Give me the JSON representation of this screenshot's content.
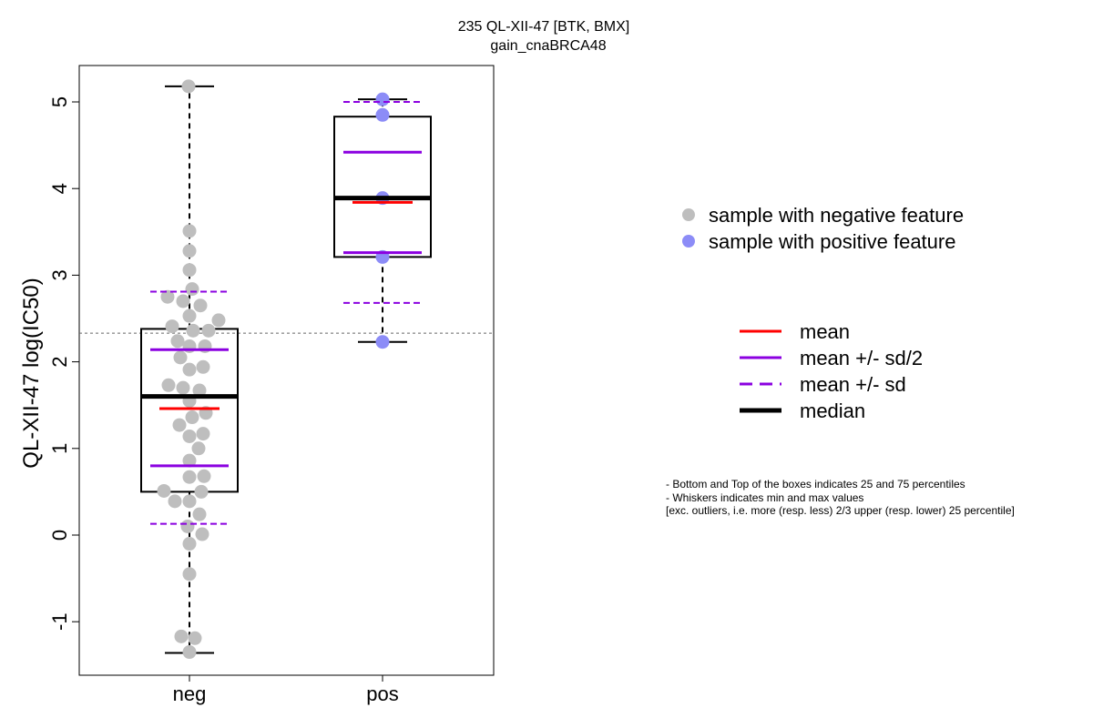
{
  "chart_data": {
    "type": "box",
    "title": "235 QL-XII-47 [BTK, BMX]",
    "subtitle": "gain_cnaBRCA48",
    "ylabel": "QL-XII-47 log(IC50)",
    "ylim": [
      -1.6,
      5.45
    ],
    "yticks": [
      -1,
      0,
      1,
      2,
      3,
      4,
      5
    ],
    "reference_line": 2.33,
    "categories": [
      "neg",
      "pos"
    ],
    "groups": [
      {
        "name": "neg",
        "color": "#bebebe",
        "box": {
          "q1": 0.5,
          "median": 1.6,
          "q3": 2.38,
          "whisker_low": -1.36,
          "whisker_high": 5.18
        },
        "mean": 1.46,
        "mean_plus_half_sd": 2.14,
        "mean_minus_half_sd": 0.8,
        "mean_plus_sd": 2.81,
        "mean_minus_sd": 0.13,
        "points": [
          {
            "x": -0.01,
            "y": 5.18
          },
          {
            "x": 0.0,
            "y": 3.51
          },
          {
            "x": 0.0,
            "y": 3.28
          },
          {
            "x": 0.0,
            "y": 3.06
          },
          {
            "x": -0.24,
            "y": 2.75
          },
          {
            "x": -0.07,
            "y": 2.7
          },
          {
            "x": 0.12,
            "y": 2.65
          },
          {
            "x": 0.03,
            "y": 2.84
          },
          {
            "x": 0.0,
            "y": 2.53
          },
          {
            "x": 0.32,
            "y": 2.48
          },
          {
            "x": -0.19,
            "y": 2.41
          },
          {
            "x": 0.04,
            "y": 2.36
          },
          {
            "x": 0.21,
            "y": 2.36
          },
          {
            "x": -0.13,
            "y": 2.24
          },
          {
            "x": 0.0,
            "y": 2.18
          },
          {
            "x": 0.17,
            "y": 2.18
          },
          {
            "x": -0.1,
            "y": 2.05
          },
          {
            "x": 0.0,
            "y": 1.91
          },
          {
            "x": 0.15,
            "y": 1.94
          },
          {
            "x": -0.23,
            "y": 1.73
          },
          {
            "x": -0.07,
            "y": 1.7
          },
          {
            "x": 0.11,
            "y": 1.67
          },
          {
            "x": 0.0,
            "y": 1.55
          },
          {
            "x": 0.18,
            "y": 1.41
          },
          {
            "x": 0.03,
            "y": 1.36
          },
          {
            "x": -0.11,
            "y": 1.27
          },
          {
            "x": 0.15,
            "y": 1.17
          },
          {
            "x": 0.0,
            "y": 1.14
          },
          {
            "x": 0.1,
            "y": 1.0
          },
          {
            "x": 0.0,
            "y": 0.86
          },
          {
            "x": 0.0,
            "y": 0.67
          },
          {
            "x": 0.16,
            "y": 0.68
          },
          {
            "x": -0.28,
            "y": 0.51
          },
          {
            "x": 0.13,
            "y": 0.5
          },
          {
            "x": -0.16,
            "y": 0.39
          },
          {
            "x": 0.0,
            "y": 0.39
          },
          {
            "x": 0.11,
            "y": 0.24
          },
          {
            "x": -0.02,
            "y": 0.1
          },
          {
            "x": 0.14,
            "y": 0.01
          },
          {
            "x": 0.0,
            "y": -0.1
          },
          {
            "x": 0.0,
            "y": -0.45
          },
          {
            "x": -0.09,
            "y": -1.17
          },
          {
            "x": 0.06,
            "y": -1.19
          },
          {
            "x": 0.0,
            "y": -1.35
          }
        ]
      },
      {
        "name": "pos",
        "color": "#8c8cf7",
        "box": {
          "q1": 3.21,
          "median": 3.89,
          "q3": 4.83,
          "whisker_low": 2.23,
          "whisker_high": 5.03
        },
        "mean": 3.84,
        "mean_plus_half_sd": 4.42,
        "mean_minus_half_sd": 3.26,
        "mean_plus_sd": 5.0,
        "mean_minus_sd": 2.68,
        "points": [
          {
            "x": 0.0,
            "y": 5.03
          },
          {
            "x": 0.0,
            "y": 4.85
          },
          {
            "x": 0.0,
            "y": 3.89
          },
          {
            "x": 0.0,
            "y": 3.21
          },
          {
            "x": 0.0,
            "y": 2.23
          }
        ]
      }
    ],
    "legend": {
      "placement": "right",
      "points": [
        {
          "label": "sample with negative feature",
          "color": "#bebebe"
        },
        {
          "label": "sample with positive feature",
          "color": "#8c8cf7"
        }
      ],
      "lines": [
        {
          "label": "mean",
          "color": "#ff0000",
          "style": "solid"
        },
        {
          "label": "mean +/- sd/2",
          "color": "#8b00e0",
          "style": "solid"
        },
        {
          "label": "mean +/- sd",
          "color": "#8b00e0",
          "style": "dashed"
        },
        {
          "label": "median",
          "color": "#000000",
          "style": "thick"
        }
      ]
    },
    "notes": [
      "- Bottom and Top of the boxes indicates 25 and 75 percentiles",
      "- Whiskers indicates min and max values",
      "[exc. outliers, i.e. more (resp. less) 2/3 upper (resp. lower) 25 percentile]"
    ],
    "colors": {
      "mean": "#ff0000",
      "sd": "#8b00e0",
      "median": "#000000",
      "reference": "#666666"
    }
  }
}
